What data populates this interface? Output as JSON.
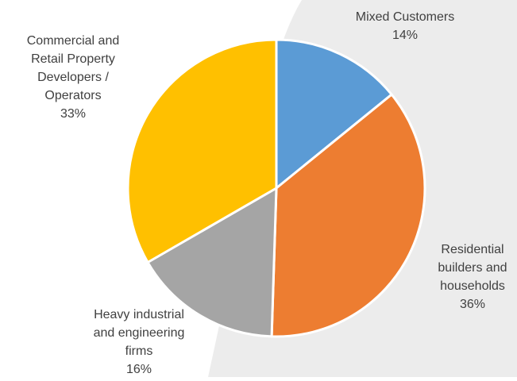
{
  "chart_data": {
    "type": "pie",
    "title": "",
    "slices": [
      {
        "label_lines": [
          "Mixed Customers"
        ],
        "pct_label": "14%",
        "value": 14,
        "color": "#5b9bd5"
      },
      {
        "label_lines": [
          "Residential",
          "builders and",
          "households"
        ],
        "pct_label": "36%",
        "value": 36,
        "color": "#ed7d31"
      },
      {
        "label_lines": [
          "Heavy industrial",
          "and engineering",
          "firms"
        ],
        "pct_label": "16%",
        "value": 16,
        "color": "#a5a5a5"
      },
      {
        "label_lines": [
          "Commercial and",
          "Retail Property",
          "Developers /",
          "Operators"
        ],
        "pct_label": "33%",
        "value": 33,
        "color": "#ffc000"
      }
    ],
    "start_angle": "12 o'clock",
    "direction": "clockwise",
    "background_color": "#ececec"
  }
}
